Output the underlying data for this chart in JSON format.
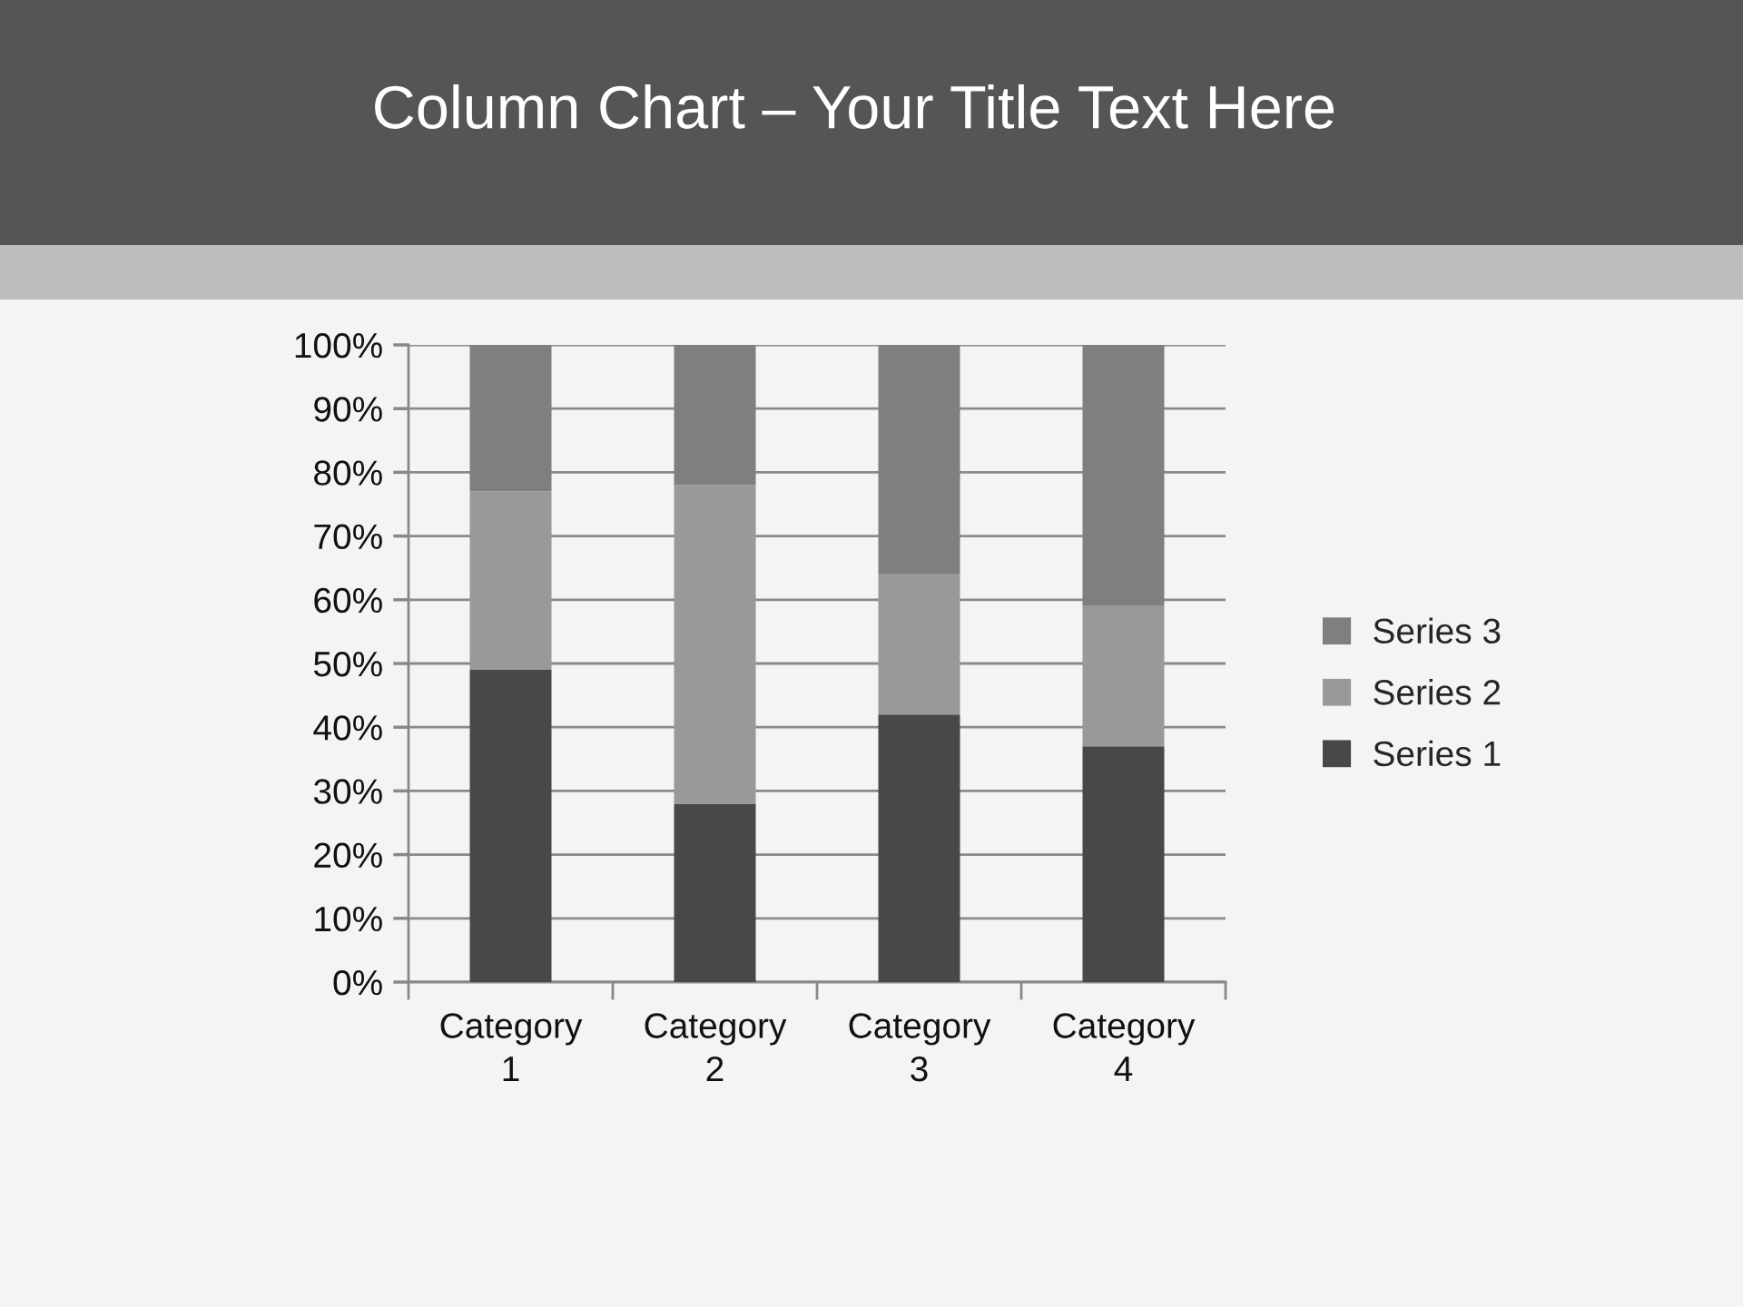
{
  "chart_data": {
    "type": "bar",
    "title": "Column Chart – Your Title Text Here",
    "categories": [
      "Category 1",
      "Category 2",
      "Category 3",
      "Category 4"
    ],
    "stacked": true,
    "series": [
      {
        "name": "Series 1",
        "color": "#484848",
        "values": [
          49,
          28,
          42,
          37
        ]
      },
      {
        "name": "Series 2",
        "color": "#999999",
        "values": [
          28,
          50,
          22,
          22
        ]
      },
      {
        "name": "Series 3",
        "color": "#7f7f7f",
        "values": [
          23,
          22,
          36,
          41
        ]
      }
    ],
    "ylim": [
      0,
      100
    ],
    "yticks": [
      {
        "value": 0,
        "label": "0%"
      },
      {
        "value": 10,
        "label": "10%"
      },
      {
        "value": 20,
        "label": "20%"
      },
      {
        "value": 30,
        "label": "30%"
      },
      {
        "value": 40,
        "label": "40%"
      },
      {
        "value": 50,
        "label": "50%"
      },
      {
        "value": 60,
        "label": "60%"
      },
      {
        "value": 70,
        "label": "70%"
      },
      {
        "value": 80,
        "label": "80%"
      },
      {
        "value": 90,
        "label": "90%"
      },
      {
        "value": 100,
        "label": "100%"
      }
    ],
    "grid": "y",
    "legend": "right"
  }
}
